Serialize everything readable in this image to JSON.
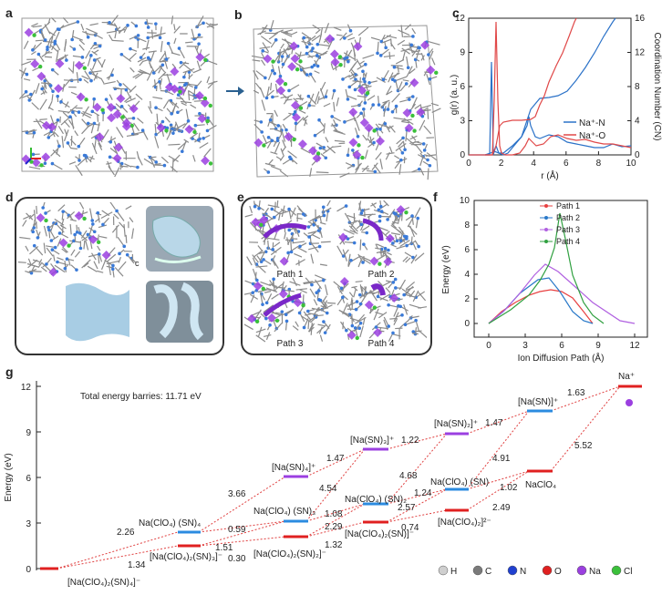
{
  "panel_labels": {
    "a": "a",
    "b": "b",
    "c": "c",
    "d": "d",
    "e": "e",
    "f": "f",
    "g": "g"
  },
  "panel_c": {
    "xlabel": "r (Å)",
    "ylabel_left": "g(r) (a. u.)",
    "ylabel_right": "Coordination Number (CN)",
    "xticks": [
      "0",
      "2",
      "4",
      "6",
      "8",
      "10"
    ],
    "yticks_left": [
      "0",
      "3",
      "6",
      "9",
      "12"
    ],
    "yticks_right": [
      "0",
      "4",
      "8",
      "12",
      "16"
    ],
    "legend": [
      "Na⁺-N",
      "Na⁺-O"
    ]
  },
  "panel_d": {
    "axes": [
      "a",
      "b",
      "c"
    ]
  },
  "panel_e": {
    "paths": [
      "Path 1",
      "Path 2",
      "Path 3",
      "Path 4"
    ]
  },
  "panel_f": {
    "xlabel": "Ion Diffusion Path (Å)",
    "ylabel": "Energy (eV)",
    "xticks": [
      "0",
      "3",
      "6",
      "9",
      "12"
    ],
    "yticks": [
      "0",
      "2",
      "4",
      "6",
      "8",
      "10"
    ],
    "legend": [
      "Path 1",
      "Path 2",
      "Path 3",
      "Path 4"
    ]
  },
  "panel_g": {
    "ylabel": "Energy (eV)",
    "yticks": [
      "0",
      "3",
      "6",
      "9",
      "12"
    ],
    "note": "Total energy barries: 11.71 eV",
    "species": {
      "s0": "[Na(ClO₄)₂(SN)₄]⁻",
      "s1": "Na(ClO₄) (SN)₄",
      "s2": "[Na(ClO₄)₂(SN)₃]⁻",
      "s3": "[Na(SN)₄]⁺",
      "s4": "Na(ClO₄) (SN)₃",
      "s5": "[Na(ClO₄)₂(SN)₂]⁻",
      "s6": "[Na(SN)₃]⁺",
      "s7": "Na(ClO₄) (SN)₂",
      "s8": "[Na(ClO₄)₂(SN)]⁻",
      "s9": "[Na(SN)₂]⁺",
      "s10": "Na(ClO₄) (SN)",
      "s11": "[Na(ClO₄)₂]²⁻",
      "s12": "[Na(SN)]⁺",
      "s13": "NaClO₄",
      "s14": "Na⁺"
    },
    "barriers": {
      "b1": "2.26",
      "b2": "1.34",
      "b3": "3.66",
      "b4": "0.59",
      "b5": "1.51",
      "b6": "0.30",
      "b7": "1.47",
      "b8": "4.54",
      "b9": "1.08",
      "b10": "2.29",
      "b11": "1.32",
      "b12": "1.22",
      "b13": "4.68",
      "b14": "2.57",
      "b15": "0.74",
      "b16": "1.47",
      "b17": "1.24",
      "b18": "4.91",
      "b19": "1.02",
      "b20": "2.49",
      "b21": "1.63",
      "b22": "5.52"
    },
    "legend": [
      "H",
      "C",
      "N",
      "O",
      "Na",
      "Cl"
    ],
    "colors": {
      "red": "#e02020",
      "blue": "#2b8be0",
      "purple": "#9b3fe0"
    }
  }
}
